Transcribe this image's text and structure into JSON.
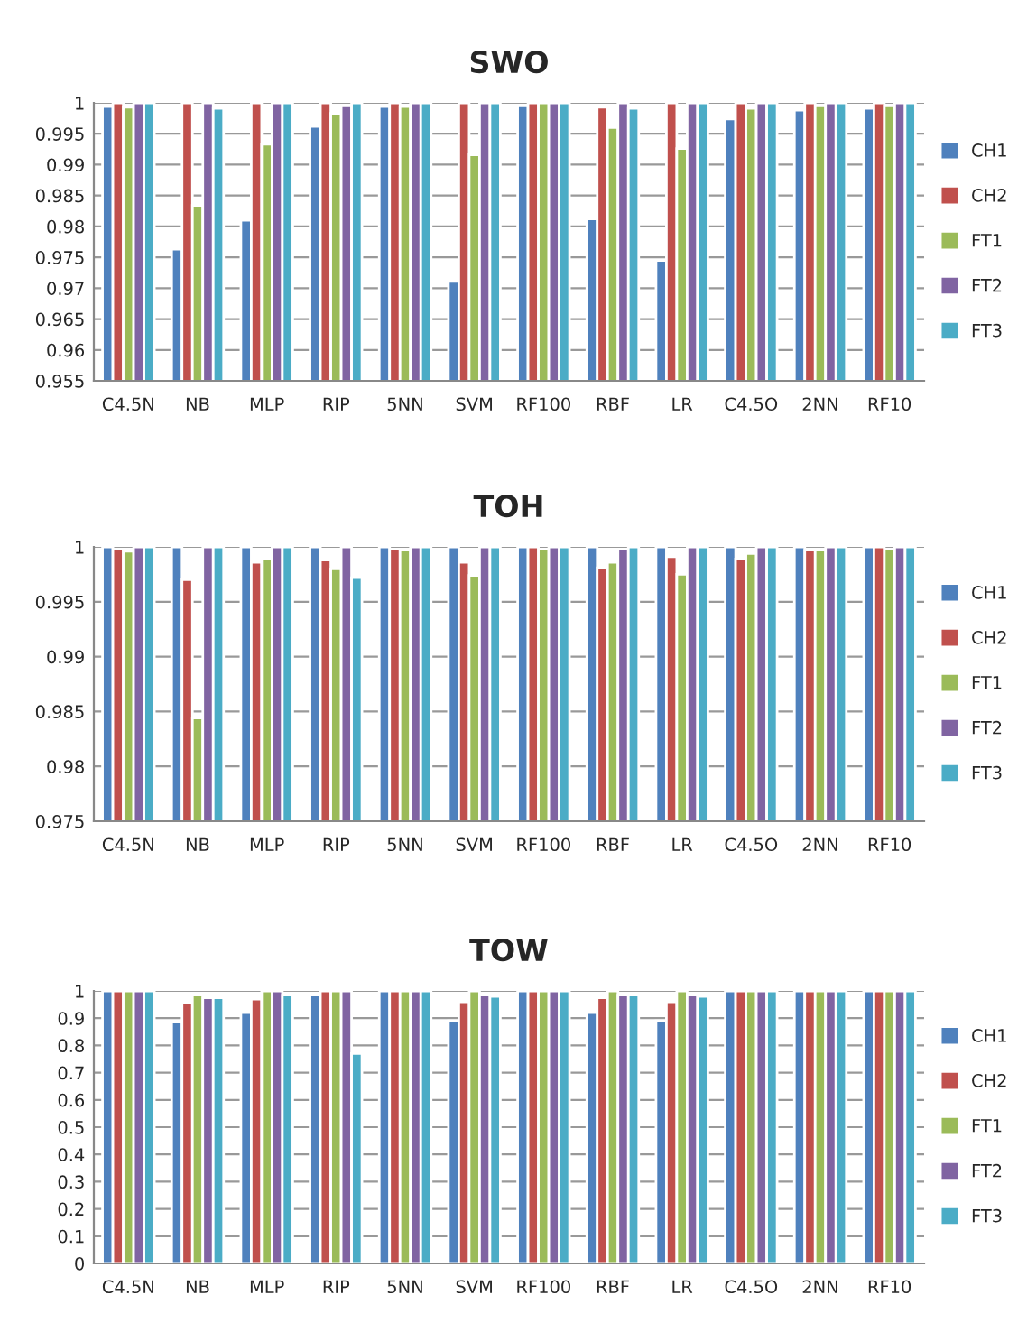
{
  "chart_data": [
    {
      "type": "bar",
      "title": "SWO",
      "categories": [
        "C4.5N",
        "NB",
        "MLP",
        "RIP",
        "5NN",
        "SVM",
        "RF100",
        "RBF",
        "LR",
        "C4.5O",
        "2NN",
        "RF10"
      ],
      "series": [
        {
          "name": "CH1",
          "color": "#4f81bd",
          "values": [
            0.9994,
            0.9763,
            0.981,
            0.9962,
            0.9994,
            0.9711,
            0.9995,
            0.9812,
            0.9745,
            0.9974,
            0.9988,
            0.9991
          ]
        },
        {
          "name": "CH2",
          "color": "#c0504d",
          "values": [
            1,
            1,
            1,
            1,
            1,
            1,
            1,
            0.9993,
            1,
            1,
            1,
            1
          ]
        },
        {
          "name": "FT1",
          "color": "#9bbb59",
          "values": [
            0.9993,
            0.9834,
            0.9933,
            0.9983,
            0.9994,
            0.9916,
            1,
            0.996,
            0.9926,
            0.9991,
            0.9995,
            0.9995
          ]
        },
        {
          "name": "FT2",
          "color": "#8064a2",
          "values": [
            1,
            1,
            1,
            0.9995,
            1,
            1,
            1,
            1,
            1,
            1,
            1,
            1
          ]
        },
        {
          "name": "FT3",
          "color": "#4bacc6",
          "values": [
            1,
            0.9991,
            1,
            1,
            1,
            1,
            1,
            0.9991,
            1,
            1,
            1,
            1
          ]
        }
      ],
      "ylim": [
        0.955,
        1
      ],
      "yticks": [
        0.955,
        0.96,
        0.965,
        0.97,
        0.975,
        0.98,
        0.985,
        0.99,
        0.995,
        1
      ],
      "grid": "y",
      "legend": "right"
    },
    {
      "type": "bar",
      "title": "TOH",
      "categories": [
        "C4.5N",
        "NB",
        "MLP",
        "RIP",
        "5NN",
        "SVM",
        "RF100",
        "RBF",
        "LR",
        "C4.5O",
        "2NN",
        "RF10"
      ],
      "series": [
        {
          "name": "CH1",
          "color": "#4f81bd",
          "values": [
            1,
            1,
            1,
            1,
            1,
            1,
            1,
            1,
            1,
            1,
            1,
            1
          ]
        },
        {
          "name": "CH2",
          "color": "#c0504d",
          "values": [
            0.9998,
            0.997,
            0.9986,
            0.9988,
            0.9998,
            0.9986,
            1,
            0.9981,
            0.9991,
            0.9989,
            0.9997,
            1
          ]
        },
        {
          "name": "FT1",
          "color": "#9bbb59",
          "values": [
            0.9996,
            0.9844,
            0.9989,
            0.998,
            0.9997,
            0.9974,
            0.9998,
            0.9986,
            0.9975,
            0.9994,
            0.9997,
            0.9998
          ]
        },
        {
          "name": "FT2",
          "color": "#8064a2",
          "values": [
            1,
            1,
            1,
            1,
            1,
            1,
            1,
            0.9998,
            1,
            1,
            1,
            1
          ]
        },
        {
          "name": "FT3",
          "color": "#4bacc6",
          "values": [
            1,
            1,
            1,
            0.9972,
            1,
            1,
            1,
            1,
            1,
            1,
            1,
            1
          ]
        }
      ],
      "ylim": [
        0.975,
        1
      ],
      "yticks": [
        0.975,
        0.98,
        0.985,
        0.99,
        0.995,
        1
      ],
      "grid": "y",
      "legend": "right"
    },
    {
      "type": "bar",
      "title": "TOW",
      "categories": [
        "C4.5N",
        "NB",
        "MLP",
        "RIP",
        "5NN",
        "SVM",
        "RF100",
        "RBF",
        "LR",
        "C4.5O",
        "2NN",
        "RF10"
      ],
      "series": [
        {
          "name": "CH1",
          "color": "#4f81bd",
          "values": [
            1,
            0.885,
            0.92,
            0.985,
            1,
            0.89,
            1,
            0.92,
            0.89,
            1,
            1,
            1
          ]
        },
        {
          "name": "CH2",
          "color": "#c0504d",
          "values": [
            1,
            0.955,
            0.97,
            1,
            1,
            0.96,
            1,
            0.975,
            0.96,
            1,
            1,
            1
          ]
        },
        {
          "name": "FT1",
          "color": "#9bbb59",
          "values": [
            1,
            0.985,
            1,
            1,
            1,
            1,
            1,
            1,
            1,
            1,
            1,
            1
          ]
        },
        {
          "name": "FT2",
          "color": "#8064a2",
          "values": [
            1,
            0.975,
            1,
            1,
            1,
            0.985,
            1,
            0.985,
            0.985,
            1,
            1,
            1
          ]
        },
        {
          "name": "FT3",
          "color": "#4bacc6",
          "values": [
            1,
            0.975,
            0.985,
            0.77,
            1,
            0.98,
            1,
            0.985,
            0.98,
            1,
            1,
            1
          ]
        }
      ],
      "ylim": [
        0,
        1
      ],
      "yticks": [
        0,
        0.1,
        0.2,
        0.3,
        0.4,
        0.5,
        0.6,
        0.7,
        0.8,
        0.9,
        1
      ],
      "grid": "y",
      "legend": "right"
    }
  ]
}
